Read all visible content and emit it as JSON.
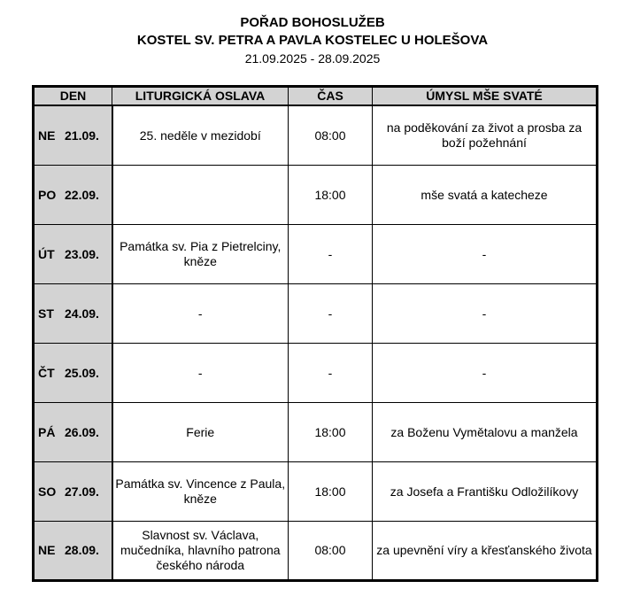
{
  "title": {
    "line1": "POŘAD BOHOSLUŽEB",
    "line2": "KOSTEL SV. PETRA A PAVLA KOSTELEC U HOLEŠOVA",
    "dates": "21.09.2025 - 28.09.2025"
  },
  "table": {
    "headers": [
      "DEN",
      "LITURGICKÁ OSLAVA",
      "ČAS",
      "ÚMYSL MŠE SVATÉ"
    ],
    "rows": [
      {
        "day": "NE",
        "date": "21.09.",
        "celebration": "25. neděle v mezidobí",
        "time": "08:00",
        "intention": "na poděkování za život a prosba za boží požehnání"
      },
      {
        "day": "PO",
        "date": "22.09.",
        "celebration": "",
        "time": "18:00",
        "intention": "mše svatá a katecheze"
      },
      {
        "day": "ÚT",
        "date": "23.09.",
        "celebration": "Památka sv. Pia z Pietrelciny, kněze",
        "time": "-",
        "intention": "-"
      },
      {
        "day": "ST",
        "date": "24.09.",
        "celebration": "-",
        "time": "-",
        "intention": "-"
      },
      {
        "day": "ČT",
        "date": "25.09.",
        "celebration": "-",
        "time": "-",
        "intention": "-"
      },
      {
        "day": "PÁ",
        "date": "26.09.",
        "celebration": "Ferie",
        "time": "18:00",
        "intention": "za Boženu Vymětalovu a manžela"
      },
      {
        "day": "SO",
        "date": "27.09.",
        "celebration": "Památka sv. Vincence z Paula, kněze",
        "time": "18:00",
        "intention": "za Josefa a Františku Odložilíkovy"
      },
      {
        "day": "NE",
        "date": "28.09.",
        "celebration": "Slavnost sv. Václava, mučedníka, hlavního patrona českého národa",
        "time": "08:00",
        "intention": "za upevnění víry a křesťanského života"
      }
    ]
  }
}
